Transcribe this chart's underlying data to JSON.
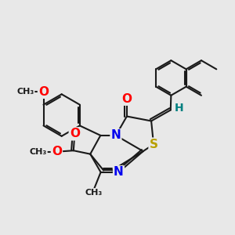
{
  "bg_color": "#e8e8e8",
  "atoms": {
    "S_yellow": "#b8a000",
    "N_blue": "#0000ee",
    "O_red": "#ff0000",
    "H_teal": "#008080",
    "C_black": "#1a1a1a"
  },
  "bond_color": "#1a1a1a",
  "bond_width": 1.5,
  "font_size_atom": 10,
  "figsize": [
    3.0,
    3.0
  ],
  "dpi": 100,
  "xlim": [
    0,
    10
  ],
  "ylim": [
    0,
    10
  ]
}
